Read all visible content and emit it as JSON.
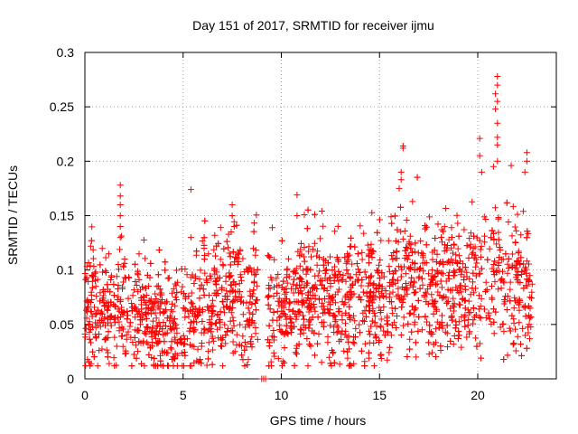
{
  "chart_data": {
    "type": "scatter",
    "title": "Day 151 of 2017, SRMTID for receiver ijmu",
    "xlabel": "GPS time / hours",
    "ylabel": "SRMTID / TECUs",
    "xlim": [
      0,
      24
    ],
    "ylim": [
      0,
      0.3
    ],
    "xticks": [
      0,
      5,
      10,
      15,
      20
    ],
    "yticks": [
      0,
      0.05,
      0.1,
      0.15,
      0.2,
      0.25,
      0.3
    ],
    "ytick_labels": [
      "0",
      "0.05",
      "0.1",
      "0.15",
      "0.2",
      "0.25",
      "0.3"
    ],
    "grid": true,
    "marker": "plus",
    "series_color": "#ff0000",
    "series": [
      {
        "name": "SRMTID",
        "n_points": 2700,
        "baseline_by_hour": [
          [
            0,
            0.07
          ],
          [
            1,
            0.065
          ],
          [
            2,
            0.062
          ],
          [
            3,
            0.058
          ],
          [
            4,
            0.052
          ],
          [
            4.5,
            0.045
          ],
          [
            5,
            0.052
          ],
          [
            6,
            0.065
          ],
          [
            7,
            0.075
          ],
          [
            8,
            0.08
          ],
          [
            9,
            0.068
          ],
          [
            10,
            0.062
          ],
          [
            11,
            0.072
          ],
          [
            12,
            0.075
          ],
          [
            13,
            0.072
          ],
          [
            14,
            0.07
          ],
          [
            15,
            0.075
          ],
          [
            16,
            0.09
          ],
          [
            17,
            0.088
          ],
          [
            18,
            0.082
          ],
          [
            19,
            0.085
          ],
          [
            20,
            0.09
          ],
          [
            21,
            0.1
          ],
          [
            22,
            0.085
          ],
          [
            22.8,
            0.08
          ]
        ],
        "data_gap_hours": [
          [
            8.8,
            9.3
          ]
        ],
        "highlight_points": [
          {
            "x": 1.8,
            "y": 0.178
          },
          {
            "x": 1.8,
            "y": 0.168
          },
          {
            "x": 1.8,
            "y": 0.16
          },
          {
            "x": 1.8,
            "y": 0.15
          },
          {
            "x": 1.8,
            "y": 0.14
          },
          {
            "x": 1.8,
            "y": 0.13
          },
          {
            "x": 5.4,
            "y": 0.174
          },
          {
            "x": 5.4,
            "y": 0.13
          },
          {
            "x": 7.5,
            "y": 0.16
          },
          {
            "x": 7.5,
            "y": 0.15
          },
          {
            "x": 7.6,
            "y": 0.14
          },
          {
            "x": 10.8,
            "y": 0.169
          },
          {
            "x": 10.8,
            "y": 0.15
          },
          {
            "x": 16.2,
            "y": 0.214
          },
          {
            "x": 16.2,
            "y": 0.212
          },
          {
            "x": 16.1,
            "y": 0.19
          },
          {
            "x": 16.1,
            "y": 0.183
          },
          {
            "x": 16.0,
            "y": 0.175
          },
          {
            "x": 20.1,
            "y": 0.221
          },
          {
            "x": 20.1,
            "y": 0.205
          },
          {
            "x": 20.2,
            "y": 0.19
          },
          {
            "x": 21.0,
            "y": 0.278
          },
          {
            "x": 21.0,
            "y": 0.27
          },
          {
            "x": 20.9,
            "y": 0.262
          },
          {
            "x": 21.0,
            "y": 0.255
          },
          {
            "x": 20.9,
            "y": 0.248
          },
          {
            "x": 21.0,
            "y": 0.235
          },
          {
            "x": 21.0,
            "y": 0.222
          },
          {
            "x": 21.0,
            "y": 0.215
          },
          {
            "x": 21.0,
            "y": 0.2
          },
          {
            "x": 20.8,
            "y": 0.195
          },
          {
            "x": 22.5,
            "y": 0.208
          },
          {
            "x": 22.5,
            "y": 0.2
          },
          {
            "x": 22.4,
            "y": 0.19
          },
          {
            "x": 21.7,
            "y": 0.196
          },
          {
            "x": 9.0,
            "y": 0.0
          },
          {
            "x": 9.1,
            "y": 0.0
          },
          {
            "x": 9.2,
            "y": 0.0
          }
        ]
      }
    ]
  }
}
